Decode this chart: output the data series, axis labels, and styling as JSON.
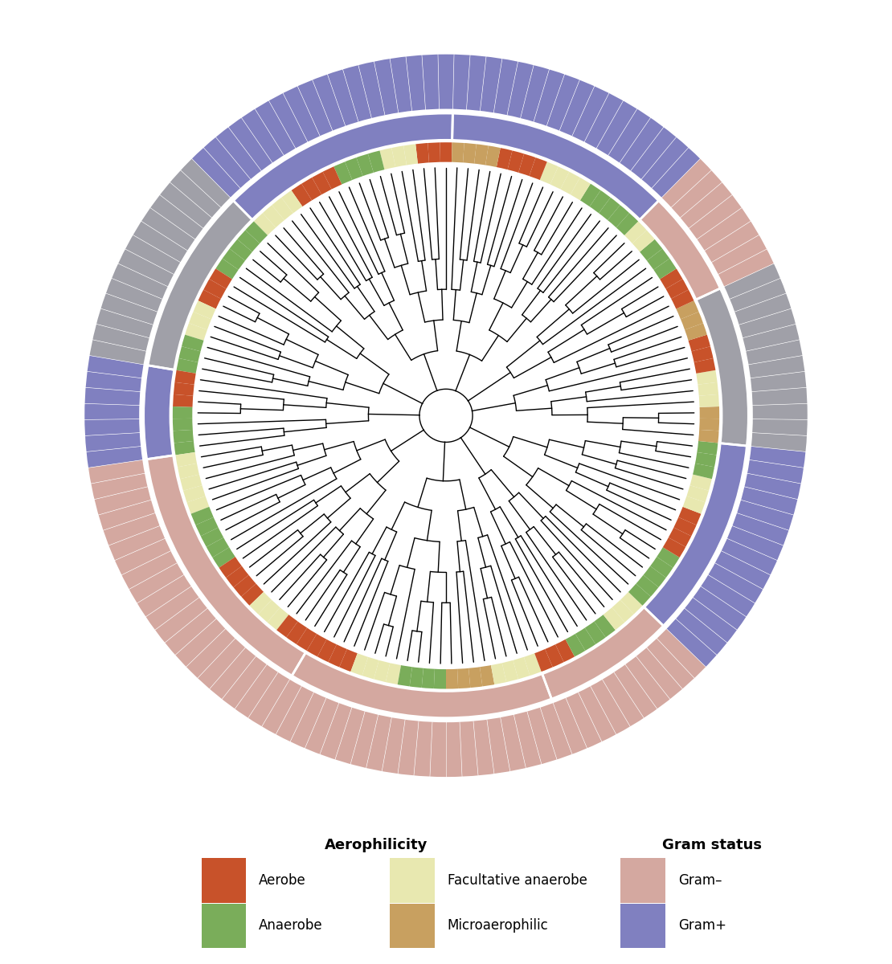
{
  "n_leaves": 141,
  "colors": {
    "aerobe": "#C8522A",
    "anaerobe": "#7AAD5A",
    "facultative_anaerobe": "#E8E8B0",
    "microaerophilic": "#C8A060",
    "gram_neg": "#D4A8A0",
    "gram_pos": "#8080C0",
    "gram_unknown": "#A0A0A8",
    "background": "#FFFFFF",
    "tree_line": "#000000",
    "separator": "#FFFFFF"
  },
  "legend": {
    "aerophilicity_title": "Aerophilicity",
    "gram_title": "Gram status",
    "aerobe_label": "Aerobe",
    "anaerobe_label": "Anaerobe",
    "facultative_label": "Facultative anaerobe",
    "microaerophilic_label": "Microaerophilic",
    "gram_neg_label": "Gram–",
    "gram_pos_label": "Gram+"
  },
  "clade_sizes": [
    18,
    14,
    7,
    20,
    20,
    10,
    15,
    12,
    8,
    17
  ],
  "radii": {
    "tree_max": 3.55,
    "aero_in": 3.62,
    "aero_out": 3.92,
    "gram_in": 3.95,
    "gram_out": 4.32,
    "outer_in": 4.38,
    "outer_out": 5.18
  }
}
